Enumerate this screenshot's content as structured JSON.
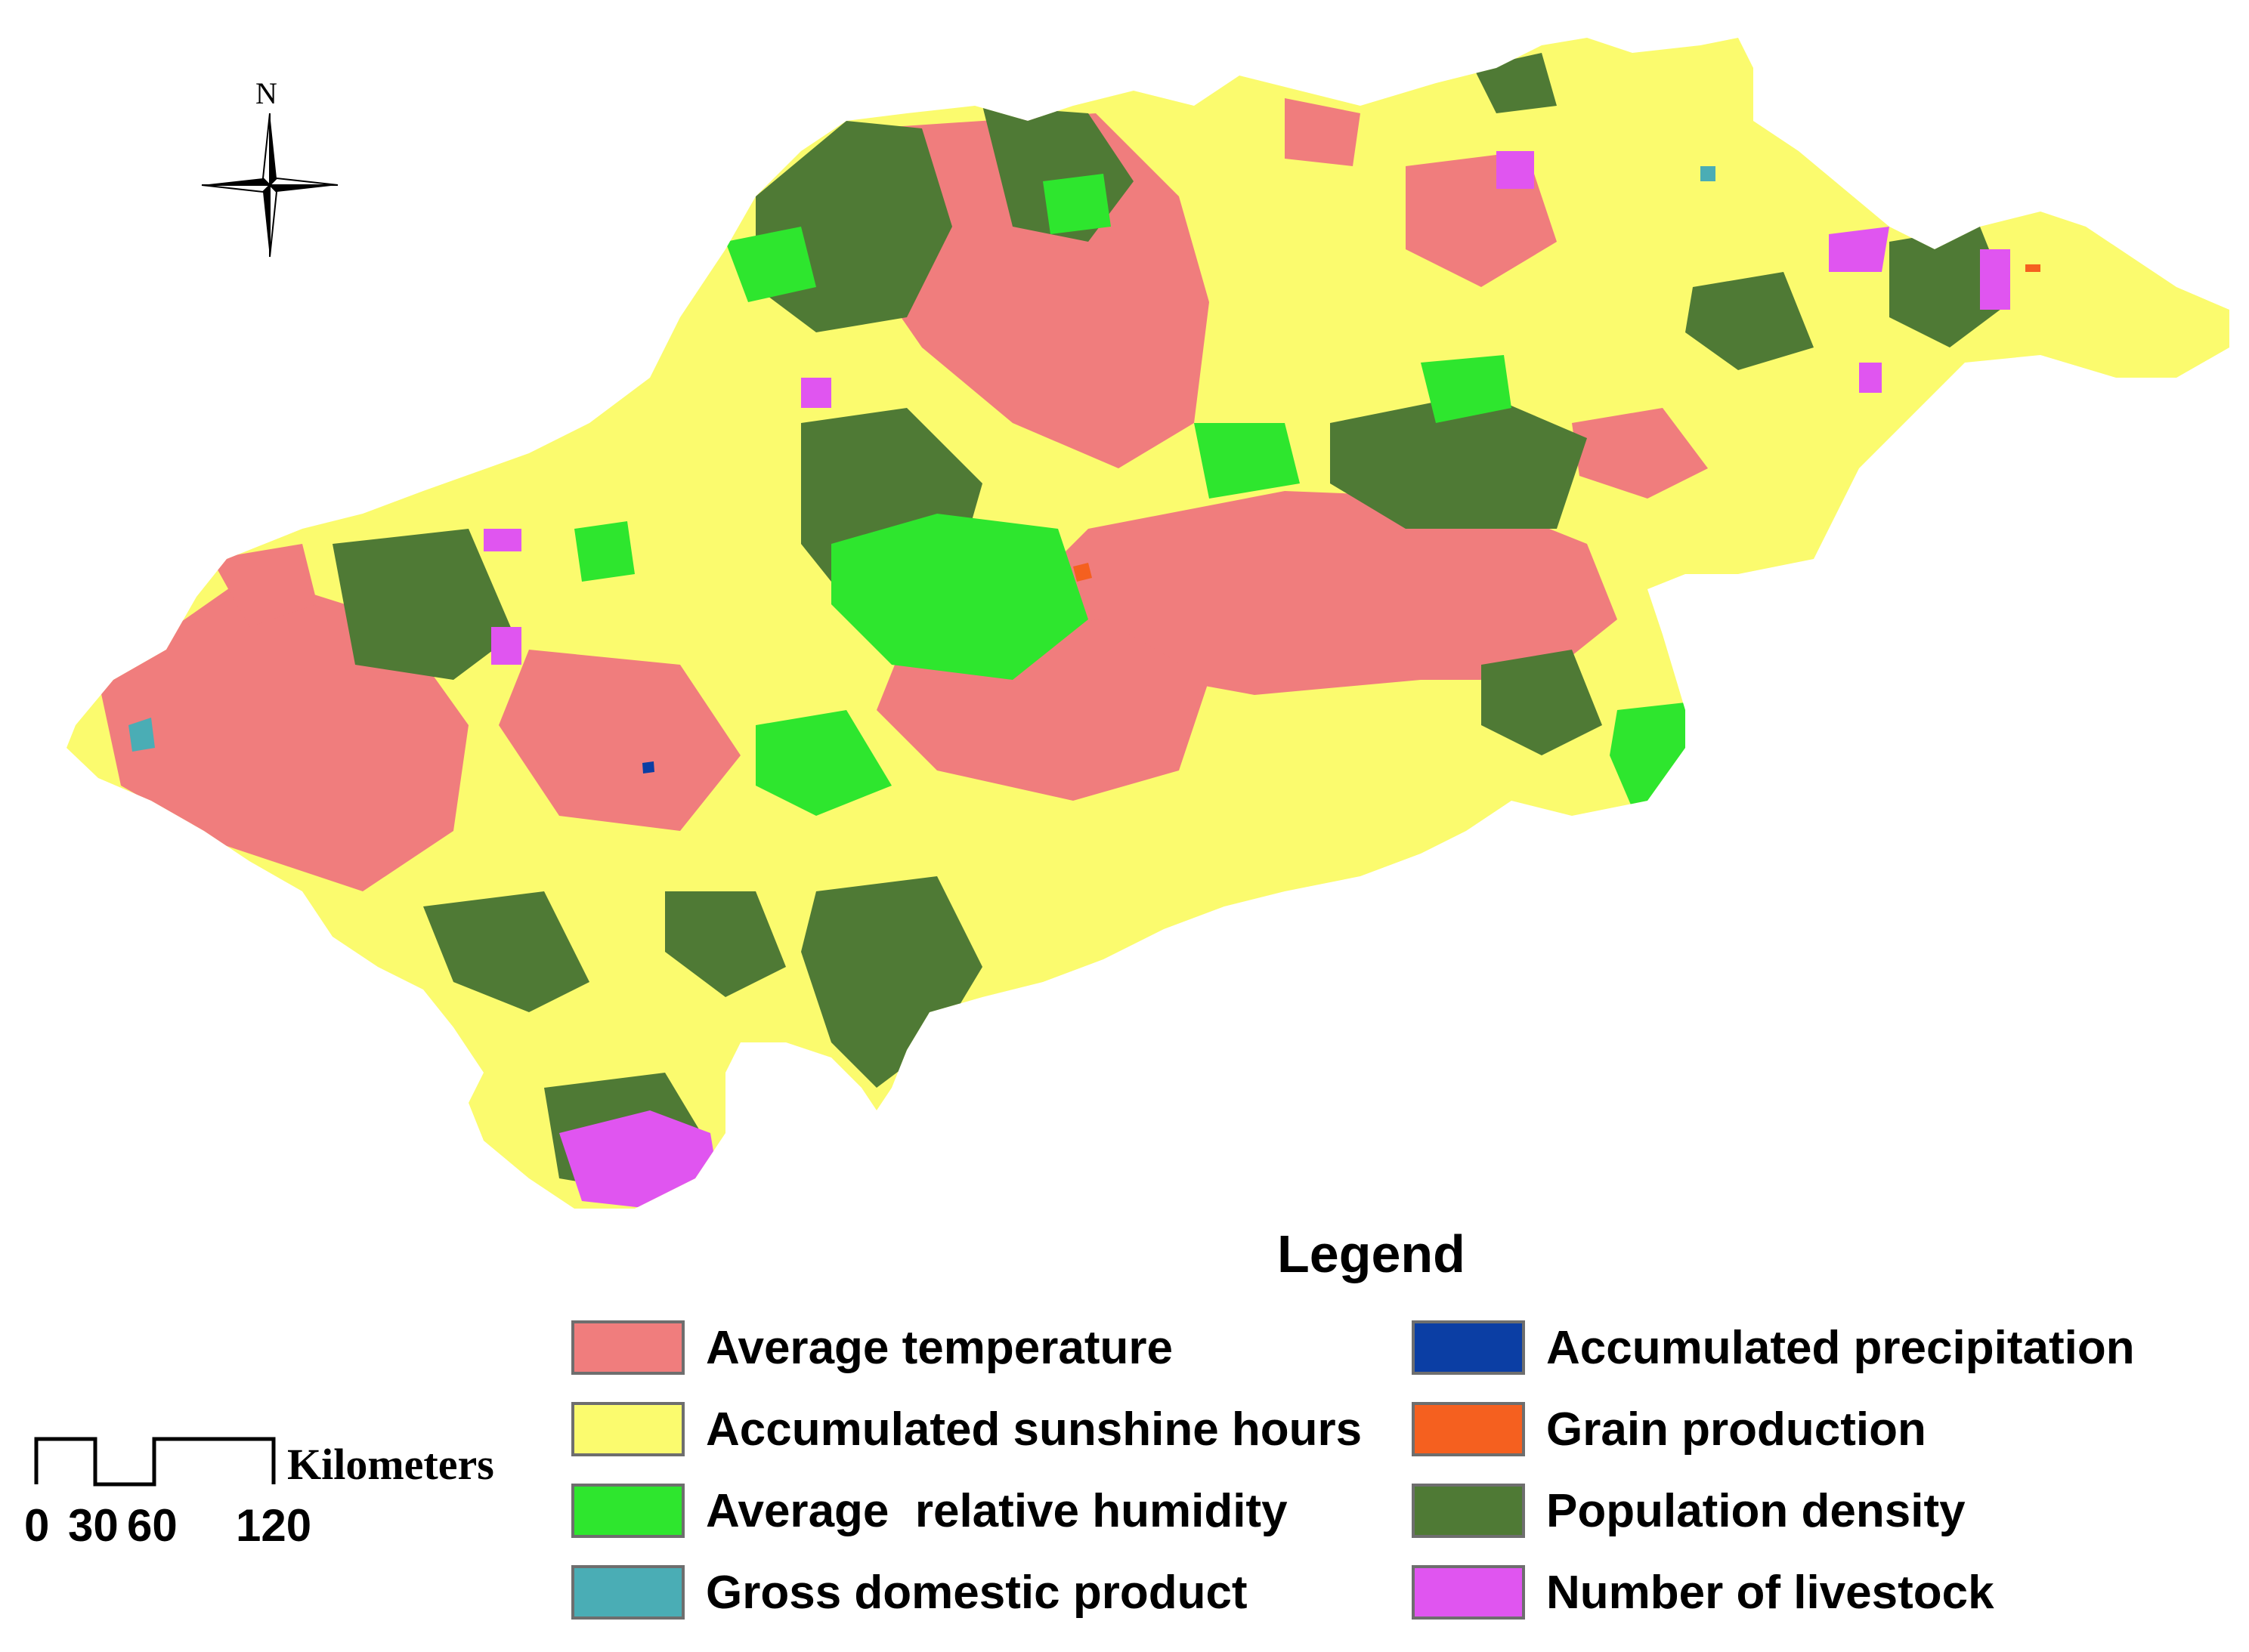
{
  "north_arrow": {
    "label": "N"
  },
  "legend": {
    "title": "Legend",
    "items": [
      {
        "label": "Average temperature",
        "color": "#f07d7d"
      },
      {
        "label": "Accumulated sunshine hours",
        "color": "#fbfb6e"
      },
      {
        "label": "Average  relative humidity",
        "color": "#2ee62e"
      },
      {
        "label": "Gross domestic product",
        "color": "#4aadb5"
      },
      {
        "label": "Accumulated precipitation",
        "color": "#0b3ea4"
      },
      {
        "label": "Grain production",
        "color": "#f5601f"
      },
      {
        "label": "Population density",
        "color": "#4f7a35"
      },
      {
        "label": "Number of livestock",
        "color": "#e055f0"
      }
    ]
  },
  "scale_bar": {
    "unit": "Kilometers",
    "ticks": [
      "0",
      "30",
      "60",
      "120"
    ]
  }
}
